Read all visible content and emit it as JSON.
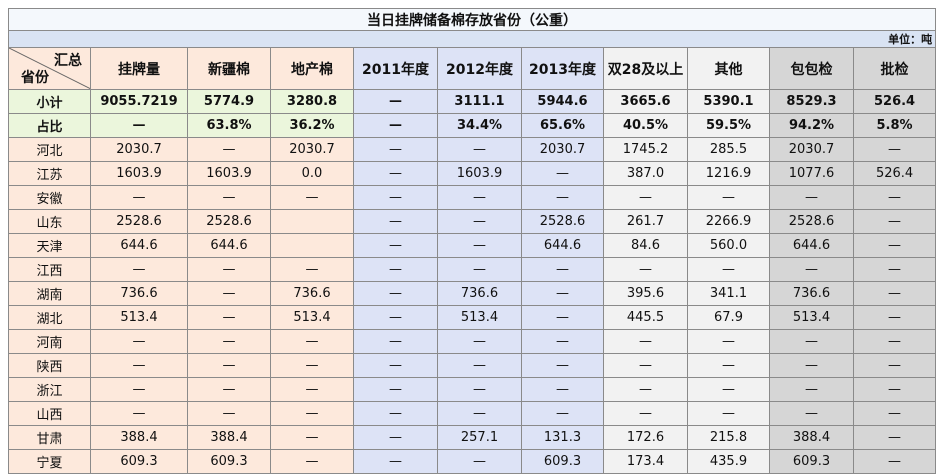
{
  "title": "当日挂牌储备棉存放省份（公重）",
  "unit": "单位：吨",
  "header": {
    "corner_top": "汇总",
    "corner_bottom": "省份",
    "columns": [
      "挂牌量",
      "新疆棉",
      "地产棉",
      "2011年度",
      "2012年度",
      "2013年度",
      "双28及以上",
      "其他",
      "包包检",
      "批检"
    ]
  },
  "rows": [
    {
      "label": "小计",
      "cells": [
        "9055.7219",
        "5774.9",
        "3280.8",
        "—",
        "3111.1",
        "5944.6",
        "3665.6",
        "5390.1",
        "8529.3",
        "526.4"
      ]
    },
    {
      "label": "占比",
      "cells": [
        "—",
        "63.8%",
        "36.2%",
        "—",
        "34.4%",
        "65.6%",
        "40.5%",
        "59.5%",
        "94.2%",
        "5.8%"
      ]
    },
    {
      "label": "河北",
      "cells": [
        "2030.7",
        "—",
        "2030.7",
        "—",
        "—",
        "2030.7",
        "1745.2",
        "285.5",
        "2030.7",
        "—"
      ]
    },
    {
      "label": "江苏",
      "cells": [
        "1603.9",
        "1603.9",
        "0.0",
        "—",
        "1603.9",
        "—",
        "387.0",
        "1216.9",
        "1077.6",
        "526.4"
      ]
    },
    {
      "label": "安徽",
      "cells": [
        "—",
        "—",
        "—",
        "—",
        "—",
        "—",
        "—",
        "—",
        "—",
        "—"
      ]
    },
    {
      "label": "山东",
      "cells": [
        "2528.6",
        "2528.6",
        null,
        "—",
        "—",
        "2528.6",
        "261.7",
        "2266.9",
        "2528.6",
        "—"
      ]
    },
    {
      "label": "天津",
      "cells": [
        "644.6",
        "644.6",
        null,
        "—",
        "—",
        "644.6",
        "84.6",
        "560.0",
        "644.6",
        "—"
      ]
    },
    {
      "label": "江西",
      "cells": [
        "—",
        "—",
        "—",
        "—",
        "—",
        "—",
        "—",
        "—",
        "—",
        "—"
      ]
    },
    {
      "label": "湖南",
      "cells": [
        "736.6",
        "—",
        "736.6",
        "—",
        "736.6",
        "—",
        "395.6",
        "341.1",
        "736.6",
        "—"
      ]
    },
    {
      "label": "湖北",
      "cells": [
        "513.4",
        "—",
        "513.4",
        "—",
        "513.4",
        "—",
        "445.5",
        "67.9",
        "513.4",
        "—"
      ]
    },
    {
      "label": "河南",
      "cells": [
        "—",
        "—",
        "—",
        "—",
        "—",
        "—",
        "—",
        "—",
        "—",
        "—"
      ]
    },
    {
      "label": "陕西",
      "cells": [
        "—",
        "—",
        "—",
        "—",
        "—",
        "—",
        "—",
        "—",
        "—",
        "—"
      ]
    },
    {
      "label": "浙江",
      "cells": [
        "—",
        "—",
        "—",
        "—",
        "—",
        "—",
        "—",
        "—",
        "—",
        "—"
      ]
    },
    {
      "label": "山西",
      "cells": [
        "—",
        "—",
        "—",
        "—",
        "—",
        "—",
        "—",
        "—",
        "—",
        "—"
      ]
    },
    {
      "label": "甘肃",
      "cells": [
        "388.4",
        "388.4",
        "—",
        "—",
        "257.1",
        "131.3",
        "172.6",
        "215.8",
        "388.4",
        "—"
      ]
    },
    {
      "label": "宁夏",
      "cells": [
        "609.3",
        "609.3",
        "—",
        "—",
        "—",
        "609.3",
        "173.4",
        "435.9",
        "609.3",
        "—"
      ]
    }
  ]
}
